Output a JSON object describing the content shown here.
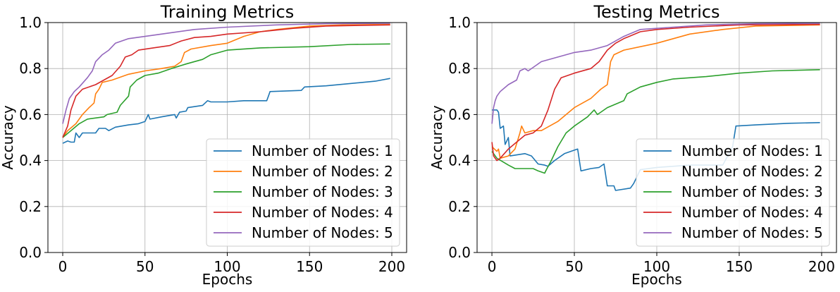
{
  "chart_data": [
    {
      "type": "line",
      "title": "Training Metrics",
      "xlabel": "Epochs",
      "ylabel": "Accuracy",
      "xlim": [
        -9,
        209
      ],
      "ylim": [
        0.0,
        1.0
      ],
      "xticks": [
        0,
        50,
        100,
        150,
        200
      ],
      "yticks": [
        0.0,
        0.2,
        0.4,
        0.6,
        0.8,
        1.0
      ],
      "grid": true,
      "legend_position": "lower-right",
      "series": [
        {
          "name": "Number of Nodes: 1",
          "color": "#1f77b4",
          "points": [
            [
              0,
              0.475
            ],
            [
              3,
              0.485
            ],
            [
              5,
              0.48
            ],
            [
              7,
              0.48
            ],
            [
              8,
              0.52
            ],
            [
              10,
              0.5
            ],
            [
              12,
              0.52
            ],
            [
              20,
              0.52
            ],
            [
              22,
              0.54
            ],
            [
              26,
              0.54
            ],
            [
              28,
              0.53
            ],
            [
              32,
              0.545
            ],
            [
              40,
              0.555
            ],
            [
              46,
              0.56
            ],
            [
              50,
              0.57
            ],
            [
              52,
              0.6
            ],
            [
              53,
              0.58
            ],
            [
              60,
              0.59
            ],
            [
              68,
              0.6
            ],
            [
              69,
              0.585
            ],
            [
              71,
              0.61
            ],
            [
              75,
              0.615
            ],
            [
              76,
              0.63
            ],
            [
              85,
              0.64
            ],
            [
              88,
              0.66
            ],
            [
              90,
              0.655
            ],
            [
              100,
              0.655
            ],
            [
              110,
              0.66
            ],
            [
              124,
              0.66
            ],
            [
              125,
              0.68
            ],
            [
              126,
              0.7
            ],
            [
              145,
              0.705
            ],
            [
              147,
              0.72
            ],
            [
              160,
              0.725
            ],
            [
              190,
              0.745
            ],
            [
              199,
              0.757
            ]
          ]
        },
        {
          "name": "Number of Nodes: 2",
          "color": "#ff7f0e",
          "points": [
            [
              0,
              0.5
            ],
            [
              3,
              0.53
            ],
            [
              8,
              0.56
            ],
            [
              12,
              0.6
            ],
            [
              16,
              0.63
            ],
            [
              19,
              0.65
            ],
            [
              20,
              0.69
            ],
            [
              22,
              0.71
            ],
            [
              24,
              0.74
            ],
            [
              30,
              0.75
            ],
            [
              40,
              0.775
            ],
            [
              50,
              0.79
            ],
            [
              60,
              0.8
            ],
            [
              68,
              0.81
            ],
            [
              72,
              0.83
            ],
            [
              74,
              0.87
            ],
            [
              78,
              0.885
            ],
            [
              90,
              0.9
            ],
            [
              100,
              0.91
            ],
            [
              110,
              0.94
            ],
            [
              120,
              0.96
            ],
            [
              130,
              0.97
            ],
            [
              150,
              0.985
            ],
            [
              170,
              0.99
            ],
            [
              199,
              0.992
            ]
          ]
        },
        {
          "name": "Number of Nodes: 3",
          "color": "#2ca02c",
          "points": [
            [
              0,
              0.5
            ],
            [
              5,
              0.53
            ],
            [
              10,
              0.56
            ],
            [
              15,
              0.58
            ],
            [
              25,
              0.59
            ],
            [
              27,
              0.6
            ],
            [
              33,
              0.61
            ],
            [
              35,
              0.64
            ],
            [
              40,
              0.68
            ],
            [
              41,
              0.72
            ],
            [
              45,
              0.75
            ],
            [
              50,
              0.77
            ],
            [
              58,
              0.78
            ],
            [
              66,
              0.8
            ],
            [
              75,
              0.82
            ],
            [
              85,
              0.84
            ],
            [
              90,
              0.86
            ],
            [
              100,
              0.88
            ],
            [
              120,
              0.89
            ],
            [
              150,
              0.895
            ],
            [
              175,
              0.905
            ],
            [
              199,
              0.907
            ]
          ]
        },
        {
          "name": "Number of Nodes: 4",
          "color": "#d62728",
          "points": [
            [
              0,
              0.5
            ],
            [
              3,
              0.55
            ],
            [
              5,
              0.62
            ],
            [
              8,
              0.68
            ],
            [
              12,
              0.71
            ],
            [
              20,
              0.73
            ],
            [
              25,
              0.75
            ],
            [
              30,
              0.77
            ],
            [
              35,
              0.81
            ],
            [
              38,
              0.85
            ],
            [
              42,
              0.86
            ],
            [
              46,
              0.88
            ],
            [
              55,
              0.89
            ],
            [
              65,
              0.9
            ],
            [
              72,
              0.92
            ],
            [
              80,
              0.935
            ],
            [
              90,
              0.94
            ],
            [
              100,
              0.95
            ],
            [
              120,
              0.96
            ],
            [
              140,
              0.975
            ],
            [
              160,
              0.985
            ],
            [
              199,
              0.99
            ]
          ]
        },
        {
          "name": "Number of Nodes: 5",
          "color": "#9467bd",
          "points": [
            [
              0,
              0.56
            ],
            [
              2,
              0.62
            ],
            [
              4,
              0.67
            ],
            [
              7,
              0.7
            ],
            [
              10,
              0.72
            ],
            [
              15,
              0.76
            ],
            [
              18,
              0.79
            ],
            [
              20,
              0.83
            ],
            [
              24,
              0.86
            ],
            [
              28,
              0.88
            ],
            [
              32,
              0.91
            ],
            [
              40,
              0.93
            ],
            [
              50,
              0.94
            ],
            [
              60,
              0.95
            ],
            [
              80,
              0.97
            ],
            [
              100,
              0.98
            ],
            [
              130,
              0.99
            ],
            [
              160,
              0.995
            ],
            [
              199,
              0.997
            ]
          ]
        }
      ]
    },
    {
      "type": "line",
      "title": "Testing Metrics",
      "xlabel": "Epochs",
      "ylabel": "Accuracy",
      "xlim": [
        -9,
        209
      ],
      "ylim": [
        0.0,
        1.0
      ],
      "xticks": [
        0,
        50,
        100,
        150,
        200
      ],
      "yticks": [
        0.0,
        0.2,
        0.4,
        0.6,
        0.8,
        1.0
      ],
      "grid": true,
      "legend_position": "lower-right",
      "series": [
        {
          "name": "Number of Nodes: 1",
          "color": "#1f77b4",
          "points": [
            [
              0,
              0.62
            ],
            [
              3,
              0.62
            ],
            [
              4,
              0.61
            ],
            [
              5,
              0.54
            ],
            [
              7,
              0.55
            ],
            [
              8,
              0.47
            ],
            [
              10,
              0.5
            ],
            [
              11,
              0.42
            ],
            [
              20,
              0.43
            ],
            [
              24,
              0.42
            ],
            [
              28,
              0.385
            ],
            [
              32,
              0.38
            ],
            [
              34,
              0.375
            ],
            [
              38,
              0.4
            ],
            [
              44,
              0.43
            ],
            [
              50,
              0.445
            ],
            [
              52,
              0.45
            ],
            [
              54,
              0.355
            ],
            [
              60,
              0.365
            ],
            [
              65,
              0.37
            ],
            [
              68,
              0.385
            ],
            [
              70,
              0.29
            ],
            [
              74,
              0.29
            ],
            [
              75,
              0.27
            ],
            [
              84,
              0.28
            ],
            [
              86,
              0.3
            ],
            [
              90,
              0.36
            ],
            [
              100,
              0.37
            ],
            [
              120,
              0.38
            ],
            [
              140,
              0.38
            ],
            [
              146,
              0.46
            ],
            [
              148,
              0.55
            ],
            [
              160,
              0.555
            ],
            [
              180,
              0.562
            ],
            [
              199,
              0.565
            ]
          ]
        },
        {
          "name": "Number of Nodes: 2",
          "color": "#ff7f0e",
          "points": [
            [
              0,
              0.46
            ],
            [
              3,
              0.44
            ],
            [
              4,
              0.45
            ],
            [
              5,
              0.41
            ],
            [
              10,
              0.42
            ],
            [
              14,
              0.45
            ],
            [
              17,
              0.52
            ],
            [
              18,
              0.55
            ],
            [
              20,
              0.52
            ],
            [
              25,
              0.53
            ],
            [
              30,
              0.53
            ],
            [
              40,
              0.57
            ],
            [
              50,
              0.63
            ],
            [
              60,
              0.67
            ],
            [
              66,
              0.71
            ],
            [
              70,
              0.73
            ],
            [
              72,
              0.83
            ],
            [
              74,
              0.86
            ],
            [
              80,
              0.88
            ],
            [
              100,
              0.91
            ],
            [
              120,
              0.95
            ],
            [
              140,
              0.97
            ],
            [
              160,
              0.985
            ],
            [
              199,
              0.99
            ]
          ]
        },
        {
          "name": "Number of Nodes: 3",
          "color": "#2ca02c",
          "points": [
            [
              0,
              0.44
            ],
            [
              3,
              0.41
            ],
            [
              10,
              0.38
            ],
            [
              14,
              0.365
            ],
            [
              20,
              0.365
            ],
            [
              25,
              0.365
            ],
            [
              28,
              0.355
            ],
            [
              32,
              0.345
            ],
            [
              33,
              0.36
            ],
            [
              36,
              0.4
            ],
            [
              40,
              0.46
            ],
            [
              45,
              0.52
            ],
            [
              50,
              0.55
            ],
            [
              58,
              0.59
            ],
            [
              62,
              0.62
            ],
            [
              64,
              0.6
            ],
            [
              70,
              0.63
            ],
            [
              80,
              0.66
            ],
            [
              82,
              0.69
            ],
            [
              90,
              0.72
            ],
            [
              100,
              0.74
            ],
            [
              110,
              0.755
            ],
            [
              130,
              0.765
            ],
            [
              150,
              0.78
            ],
            [
              170,
              0.79
            ],
            [
              199,
              0.795
            ]
          ]
        },
        {
          "name": "Number of Nodes: 4",
          "color": "#d62728",
          "points": [
            [
              0,
              0.48
            ],
            [
              1,
              0.42
            ],
            [
              3,
              0.4
            ],
            [
              5,
              0.41
            ],
            [
              10,
              0.45
            ],
            [
              15,
              0.48
            ],
            [
              20,
              0.51
            ],
            [
              25,
              0.52
            ],
            [
              30,
              0.55
            ],
            [
              34,
              0.62
            ],
            [
              38,
              0.71
            ],
            [
              42,
              0.76
            ],
            [
              50,
              0.78
            ],
            [
              60,
              0.8
            ],
            [
              65,
              0.83
            ],
            [
              70,
              0.88
            ],
            [
              75,
              0.91
            ],
            [
              80,
              0.93
            ],
            [
              90,
              0.96
            ],
            [
              100,
              0.97
            ],
            [
              120,
              0.98
            ],
            [
              150,
              0.99
            ],
            [
              199,
              0.992
            ]
          ]
        },
        {
          "name": "Number of Nodes: 5",
          "color": "#9467bd",
          "points": [
            [
              0,
              0.56
            ],
            [
              1,
              0.63
            ],
            [
              2,
              0.66
            ],
            [
              3,
              0.68
            ],
            [
              5,
              0.7
            ],
            [
              10,
              0.73
            ],
            [
              15,
              0.75
            ],
            [
              17,
              0.79
            ],
            [
              20,
              0.8
            ],
            [
              22,
              0.79
            ],
            [
              30,
              0.83
            ],
            [
              40,
              0.85
            ],
            [
              50,
              0.87
            ],
            [
              60,
              0.88
            ],
            [
              70,
              0.9
            ],
            [
              80,
              0.94
            ],
            [
              90,
              0.97
            ],
            [
              110,
              0.98
            ],
            [
              130,
              0.99
            ],
            [
              160,
              0.995
            ],
            [
              199,
              0.997
            ]
          ]
        }
      ]
    }
  ]
}
